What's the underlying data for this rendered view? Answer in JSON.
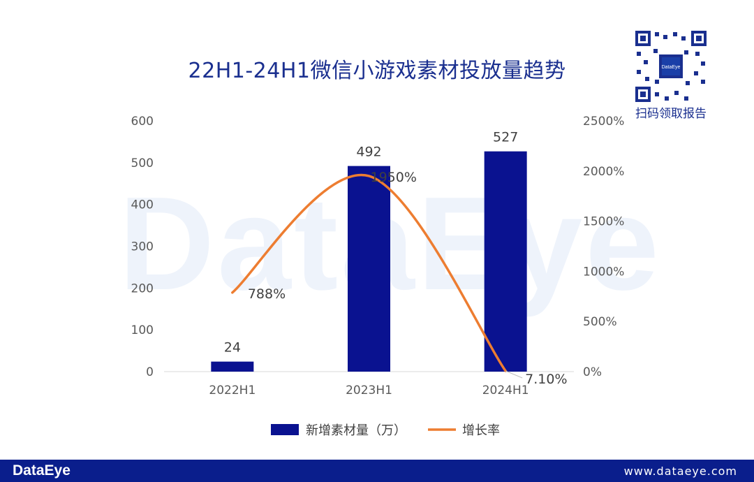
{
  "page": {
    "title": "22H1-24H1微信小游戏素材投放量趋势",
    "watermark": "DataEye",
    "qr_caption": "扫码领取报告",
    "qr_center": "DataEye",
    "footer_logo": "DataEye",
    "footer_url": "www.dataeye.com"
  },
  "colors": {
    "bar": "#0a1290",
    "line": "#ed7d31",
    "title": "#1a2f8f",
    "footer": "#0a1e8c"
  },
  "chart_data": {
    "type": "bar",
    "categories": [
      "2022H1",
      "2023H1",
      "2024H1"
    ],
    "series": [
      {
        "name": "新增素材量（万）",
        "type": "bar",
        "axis": "left",
        "values": [
          24,
          492,
          527
        ],
        "labels": [
          "24",
          "492",
          "527"
        ]
      },
      {
        "name": "增长率",
        "type": "line",
        "axis": "right",
        "values": [
          788,
          1950,
          7.1
        ],
        "labels": [
          "788%",
          "1950%",
          "7.10%"
        ]
      }
    ],
    "y_left": {
      "min": 0,
      "max": 600,
      "ticks": [
        0,
        100,
        200,
        300,
        400,
        500,
        600
      ]
    },
    "y_right": {
      "min": 0,
      "max": 2500,
      "ticks": [
        "0%",
        "500%",
        "1000%",
        "1500%",
        "2000%",
        "2500%"
      ]
    },
    "legend": {
      "position": "bottom"
    },
    "grid": false
  }
}
